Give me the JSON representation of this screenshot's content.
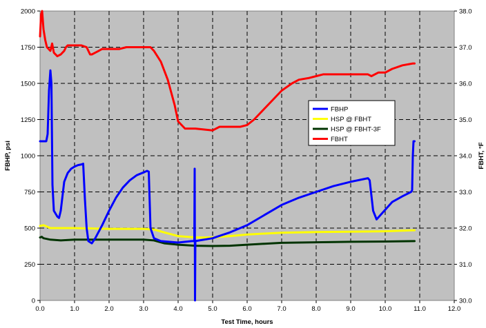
{
  "chart_data": {
    "type": "line",
    "xlabel": "Test Time, hours",
    "ylabel": "FBHP, psi",
    "y2label": "FBHT, °F",
    "xlim": [
      0,
      12
    ],
    "ylim": [
      0,
      2000
    ],
    "y2lim": [
      30,
      38
    ],
    "x_ticks": [
      "0.0",
      "1.0",
      "2.0",
      "3.0",
      "4.0",
      "5.0",
      "6.0",
      "7.0",
      "8.0",
      "9.0",
      "10.0",
      "11.0",
      "12.0"
    ],
    "y_ticks": [
      "0",
      "250",
      "500",
      "750",
      "1000",
      "1250",
      "1500",
      "1750",
      "2000"
    ],
    "y2_ticks": [
      "30.0",
      "31.0",
      "32.0",
      "33.0",
      "34.0",
      "35.0",
      "36.0",
      "37.0",
      "38.0"
    ],
    "grid": true,
    "legend_position": "center-right",
    "series": [
      {
        "name": "FBHP",
        "axis": "left",
        "color": "#0000ff",
        "points": [
          [
            0.0,
            1100
          ],
          [
            0.18,
            1100
          ],
          [
            0.22,
            1150
          ],
          [
            0.26,
            1450
          ],
          [
            0.3,
            1590
          ],
          [
            0.33,
            1500
          ],
          [
            0.36,
            800
          ],
          [
            0.4,
            620
          ],
          [
            0.45,
            600
          ],
          [
            0.5,
            580
          ],
          [
            0.55,
            570
          ],
          [
            0.6,
            620
          ],
          [
            0.7,
            820
          ],
          [
            0.8,
            880
          ],
          [
            0.9,
            910
          ],
          [
            1.0,
            925
          ],
          [
            1.1,
            935
          ],
          [
            1.2,
            940
          ],
          [
            1.25,
            945
          ],
          [
            1.3,
            700
          ],
          [
            1.35,
            500
          ],
          [
            1.4,
            410
          ],
          [
            1.5,
            395
          ],
          [
            1.6,
            430
          ],
          [
            1.8,
            520
          ],
          [
            2.0,
            620
          ],
          [
            2.2,
            710
          ],
          [
            2.4,
            780
          ],
          [
            2.6,
            830
          ],
          [
            2.8,
            865
          ],
          [
            3.0,
            885
          ],
          [
            3.1,
            895
          ],
          [
            3.15,
            890
          ],
          [
            3.2,
            500
          ],
          [
            3.3,
            430
          ],
          [
            3.5,
            410
          ],
          [
            4.0,
            400
          ],
          [
            4.4,
            410
          ],
          [
            4.47,
            410
          ],
          [
            4.48,
            910
          ],
          [
            4.49,
            0
          ],
          [
            4.5,
            410
          ],
          [
            5.0,
            430
          ],
          [
            5.5,
            470
          ],
          [
            6.0,
            520
          ],
          [
            6.5,
            590
          ],
          [
            7.0,
            660
          ],
          [
            7.5,
            710
          ],
          [
            8.0,
            750
          ],
          [
            8.5,
            790
          ],
          [
            9.0,
            820
          ],
          [
            9.5,
            845
          ],
          [
            9.55,
            830
          ],
          [
            9.65,
            620
          ],
          [
            9.75,
            560
          ],
          [
            9.9,
            600
          ],
          [
            10.2,
            680
          ],
          [
            10.5,
            720
          ],
          [
            10.75,
            750
          ],
          [
            10.78,
            760
          ],
          [
            10.8,
            1000
          ],
          [
            10.82,
            1100
          ],
          [
            10.85,
            1100
          ]
        ]
      },
      {
        "name": "HSP @ FBHT",
        "axis": "left",
        "color": "#ffff00",
        "points": [
          [
            0.0,
            515
          ],
          [
            0.1,
            520
          ],
          [
            0.3,
            500
          ],
          [
            0.6,
            500
          ],
          [
            1.0,
            500
          ],
          [
            2.0,
            495
          ],
          [
            3.0,
            495
          ],
          [
            3.3,
            490
          ],
          [
            3.6,
            470
          ],
          [
            4.0,
            445
          ],
          [
            4.5,
            435
          ],
          [
            5.0,
            435
          ],
          [
            5.5,
            445
          ],
          [
            6.0,
            455
          ],
          [
            6.5,
            462
          ],
          [
            7.0,
            468
          ],
          [
            8.0,
            473
          ],
          [
            9.0,
            475
          ],
          [
            10.0,
            478
          ],
          [
            10.85,
            485
          ]
        ]
      },
      {
        "name": "HSP @ FBHT-3F",
        "axis": "left",
        "color": "#003300",
        "points": [
          [
            0.0,
            435
          ],
          [
            0.05,
            440
          ],
          [
            0.1,
            430
          ],
          [
            0.3,
            420
          ],
          [
            0.6,
            415
          ],
          [
            1.0,
            420
          ],
          [
            2.0,
            420
          ],
          [
            3.0,
            420
          ],
          [
            3.3,
            415
          ],
          [
            3.6,
            395
          ],
          [
            4.0,
            385
          ],
          [
            4.5,
            378
          ],
          [
            5.0,
            376
          ],
          [
            5.5,
            378
          ],
          [
            6.0,
            385
          ],
          [
            6.5,
            392
          ],
          [
            7.0,
            398
          ],
          [
            8.0,
            402
          ],
          [
            9.0,
            405
          ],
          [
            10.0,
            407
          ],
          [
            10.85,
            410
          ]
        ]
      },
      {
        "name": "FBHT",
        "axis": "right",
        "color": "#ff0000",
        "points": [
          [
            0.0,
            37.3
          ],
          [
            0.03,
            37.9
          ],
          [
            0.06,
            38.0
          ],
          [
            0.1,
            37.5
          ],
          [
            0.15,
            37.2
          ],
          [
            0.2,
            37.0
          ],
          [
            0.3,
            36.9
          ],
          [
            0.35,
            37.1
          ],
          [
            0.4,
            36.85
          ],
          [
            0.5,
            36.75
          ],
          [
            0.6,
            36.8
          ],
          [
            0.7,
            36.9
          ],
          [
            0.75,
            37.0
          ],
          [
            0.8,
            37.05
          ],
          [
            1.0,
            37.05
          ],
          [
            1.2,
            37.05
          ],
          [
            1.35,
            37.0
          ],
          [
            1.45,
            36.8
          ],
          [
            1.5,
            36.8
          ],
          [
            1.6,
            36.85
          ],
          [
            1.7,
            36.9
          ],
          [
            1.8,
            36.95
          ],
          [
            2.0,
            36.95
          ],
          [
            2.3,
            36.95
          ],
          [
            2.5,
            37.0
          ],
          [
            2.8,
            37.0
          ],
          [
            3.0,
            37.0
          ],
          [
            3.2,
            37.0
          ],
          [
            3.3,
            36.9
          ],
          [
            3.5,
            36.6
          ],
          [
            3.7,
            36.1
          ],
          [
            3.9,
            35.4
          ],
          [
            4.0,
            34.95
          ],
          [
            4.2,
            34.75
          ],
          [
            4.5,
            34.75
          ],
          [
            5.0,
            34.7
          ],
          [
            5.2,
            34.8
          ],
          [
            5.5,
            34.8
          ],
          [
            5.8,
            34.8
          ],
          [
            6.0,
            34.85
          ],
          [
            6.2,
            35.0
          ],
          [
            6.4,
            35.2
          ],
          [
            6.6,
            35.4
          ],
          [
            6.8,
            35.6
          ],
          [
            7.0,
            35.8
          ],
          [
            7.3,
            36.0
          ],
          [
            7.5,
            36.1
          ],
          [
            7.8,
            36.15
          ],
          [
            8.0,
            36.2
          ],
          [
            8.2,
            36.25
          ],
          [
            8.5,
            36.25
          ],
          [
            9.0,
            36.25
          ],
          [
            9.5,
            36.25
          ],
          [
            9.6,
            36.2
          ],
          [
            9.8,
            36.3
          ],
          [
            10.0,
            36.3
          ],
          [
            10.2,
            36.4
          ],
          [
            10.5,
            36.5
          ],
          [
            10.8,
            36.55
          ],
          [
            10.85,
            36.55
          ]
        ]
      }
    ]
  }
}
